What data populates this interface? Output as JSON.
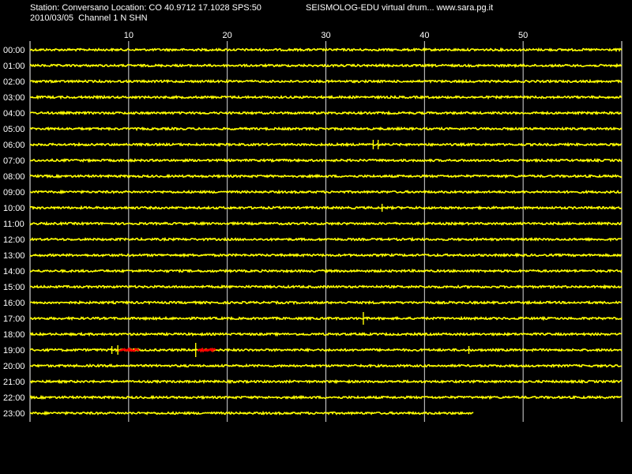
{
  "header": {
    "station_line": "Station: Conversano Location: CO 40.9712 17.1028 SPS:50",
    "date_line": "2010/03/05  Channel 1 N SHN",
    "app_line": "SEISMOLOG-EDU virtual drum... www.sara.pg.it"
  },
  "colors": {
    "background": "#000000",
    "trace": "#ffff00",
    "event": "#ff0000",
    "grid": "#ffffff",
    "text": "#ffffff"
  },
  "chart_data": {
    "type": "line",
    "x_ticks": [
      "10",
      "20",
      "30",
      "40",
      "50"
    ],
    "x_tick_values": [
      10,
      20,
      30,
      40,
      50
    ],
    "x_range": [
      0,
      60
    ],
    "hours": [
      "00:00",
      "01:00",
      "02:00",
      "03:00",
      "04:00",
      "05:00",
      "06:00",
      "07:00",
      "08:00",
      "09:00",
      "10:00",
      "11:00",
      "12:00",
      "13:00",
      "14:00",
      "15:00",
      "16:00",
      "17:00",
      "18:00",
      "19:00",
      "20:00",
      "21:00",
      "22:00",
      "23:00"
    ],
    "last_trace_end_minute": 45,
    "spikes": [
      {
        "hour": "06:00",
        "minute": 34.8,
        "amp": 6
      },
      {
        "hour": "06:00",
        "minute": 35.3,
        "amp": 6
      },
      {
        "hour": "10:00",
        "minute": 35.7,
        "amp": 5
      },
      {
        "hour": "17:00",
        "minute": 33.8,
        "amp": 8
      },
      {
        "hour": "19:00",
        "minute": 8.3,
        "amp": 5
      },
      {
        "hour": "19:00",
        "minute": 8.9,
        "amp": 6
      },
      {
        "hour": "19:00",
        "minute": 16.8,
        "amp": 9
      },
      {
        "hour": "19:00",
        "minute": 44.5,
        "amp": 5
      }
    ],
    "event_segments": [
      {
        "hour": "19:00",
        "from": 9.0,
        "to": 11.1
      },
      {
        "hour": "19:00",
        "from": 17.0,
        "to": 18.9
      }
    ],
    "grid": true
  }
}
